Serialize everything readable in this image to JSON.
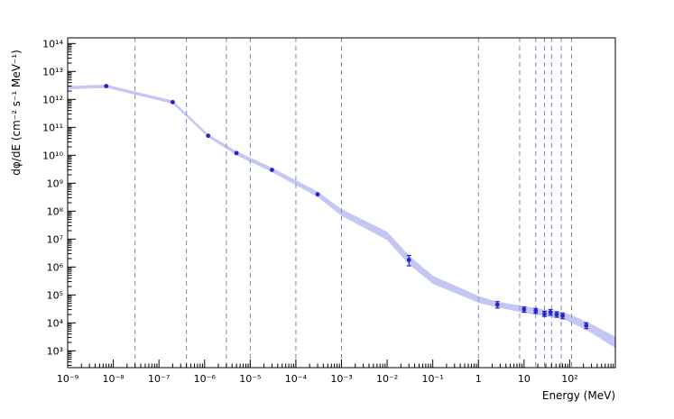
{
  "figure": {
    "background": "#ffffff"
  },
  "chart_data": {
    "type": "scatter",
    "title": "",
    "xlabel": "Energy (MeV)",
    "ylabel": "dφ/dE (cm⁻² s⁻¹ MeV⁻¹)",
    "x_scale": "log",
    "y_scale": "log",
    "xlim": [
      1e-09,
      1000
    ],
    "ylim": [
      250,
      160000000000000.0
    ],
    "grid": "dashed-vertical-only",
    "legend": "none",
    "axis_color": "#000000",
    "gridline_color": "#7777aa",
    "x_tick_labels": [
      {
        "value": 1e-09,
        "label": "10⁻⁹"
      },
      {
        "value": 1e-08,
        "label": "10⁻⁸"
      },
      {
        "value": 1e-07,
        "label": "10⁻⁷"
      },
      {
        "value": 1e-06,
        "label": "10⁻⁶"
      },
      {
        "value": 1e-05,
        "label": "10⁻⁵"
      },
      {
        "value": 0.0001,
        "label": "10⁻⁴"
      },
      {
        "value": 0.001,
        "label": "10⁻³"
      },
      {
        "value": 0.01,
        "label": "10⁻²"
      },
      {
        "value": 0.1,
        "label": "10⁻¹"
      },
      {
        "value": 1,
        "label": "1"
      },
      {
        "value": 10,
        "label": "10"
      },
      {
        "value": 100,
        "label": "10²"
      }
    ],
    "y_tick_labels": [
      {
        "value": 1000.0,
        "label": "10³"
      },
      {
        "value": 10000.0,
        "label": "10⁴"
      },
      {
        "value": 100000.0,
        "label": "10⁵"
      },
      {
        "value": 1000000.0,
        "label": "10⁶"
      },
      {
        "value": 10000000.0,
        "label": "10⁷"
      },
      {
        "value": 100000000.0,
        "label": "10⁸"
      },
      {
        "value": 1000000000.0,
        "label": "10⁹"
      },
      {
        "value": 10000000000.0,
        "label": "10¹⁰"
      },
      {
        "value": 100000000000.0,
        "label": "10¹¹"
      },
      {
        "value": 1000000000000.0,
        "label": "10¹²"
      },
      {
        "value": 10000000000000.0,
        "label": "10¹³"
      },
      {
        "value": 100000000000000.0,
        "label": "10¹⁴"
      }
    ],
    "grid_lines_x": [
      3e-08,
      4e-07,
      3e-06,
      1e-05,
      0.0001,
      0.001,
      1,
      8,
      18,
      28,
      40,
      65,
      110
    ],
    "band": {
      "color": "#8a90e8",
      "opacity": 0.5,
      "x": [
        1e-09,
        7e-09,
        2e-07,
        1.2e-06,
        5e-06,
        3e-05,
        0.0003,
        0.001,
        0.01,
        0.03,
        0.1,
        1,
        2.6,
        10,
        30,
        70,
        230,
        1000
      ],
      "y_low": [
        2300000000000.0,
        2600000000000.0,
        700000000000.0,
        44000000000.0,
        10000000000.0,
        2500000000.0,
        320000000.0,
        68000000.0,
        9200000.0,
        1240000.0,
        250000.0,
        53000.0,
        36000.0,
        23000.0,
        17000.0,
        14000.0,
        5700.0,
        1260.0
      ],
      "y_high": [
        3000000000000.0,
        3400000000000.0,
        920000000000.0,
        57000000000.0,
        14000000000.0,
        3600000000.0,
        500000000.0,
        119000000.0,
        18400000.0,
        2600000.0,
        490000.0,
        92000.0,
        57000.0,
        40000.0,
        29000.0,
        25000.0,
        11300.0,
        3200.0
      ]
    },
    "points": {
      "color": "#2424cc",
      "data": [
        {
          "x": 7e-09,
          "y": 3000000000000.0,
          "y_low": 3000000000000.0,
          "y_high": 3000000000000.0
        },
        {
          "x": 2e-07,
          "y": 800000000000.0,
          "y_low": 800000000000.0,
          "y_high": 800000000000.0
        },
        {
          "x": 1.2e-06,
          "y": 50000000000.0,
          "y_low": 50000000000.0,
          "y_high": 50000000000.0
        },
        {
          "x": 5e-06,
          "y": 12000000000.0,
          "y_low": 12000000000.0,
          "y_high": 12000000000.0
        },
        {
          "x": 3e-05,
          "y": 3000000000.0,
          "y_low": 3000000000.0,
          "y_high": 3000000000.0
        },
        {
          "x": 0.0003,
          "y": 400000000.0,
          "y_low": 400000000.0,
          "y_high": 400000000.0
        },
        {
          "x": 0.03,
          "y": 1800000.0,
          "y_low": 1100000.0,
          "y_high": 2600000.0
        },
        {
          "x": 2.6,
          "y": 45000.0,
          "y_low": 34000.0,
          "y_high": 58000.0
        },
        {
          "x": 10,
          "y": 30000.0,
          "y_low": 24000.0,
          "y_high": 37000.0
        },
        {
          "x": 18,
          "y": 27000.0,
          "y_low": 22000.0,
          "y_high": 33000.0
        },
        {
          "x": 28,
          "y": 21000.0,
          "y_low": 17000.0,
          "y_high": 26000.0
        },
        {
          "x": 38,
          "y": 24000.0,
          "y_low": 19000.0,
          "y_high": 30000.0
        },
        {
          "x": 52,
          "y": 20000.0,
          "y_low": 16000.0,
          "y_high": 25000.0
        },
        {
          "x": 70,
          "y": 18000.0,
          "y_low": 14000.0,
          "y_high": 22000.0
        },
        {
          "x": 230,
          "y": 8000.0,
          "y_low": 6200.0,
          "y_high": 10000.0
        }
      ]
    }
  }
}
